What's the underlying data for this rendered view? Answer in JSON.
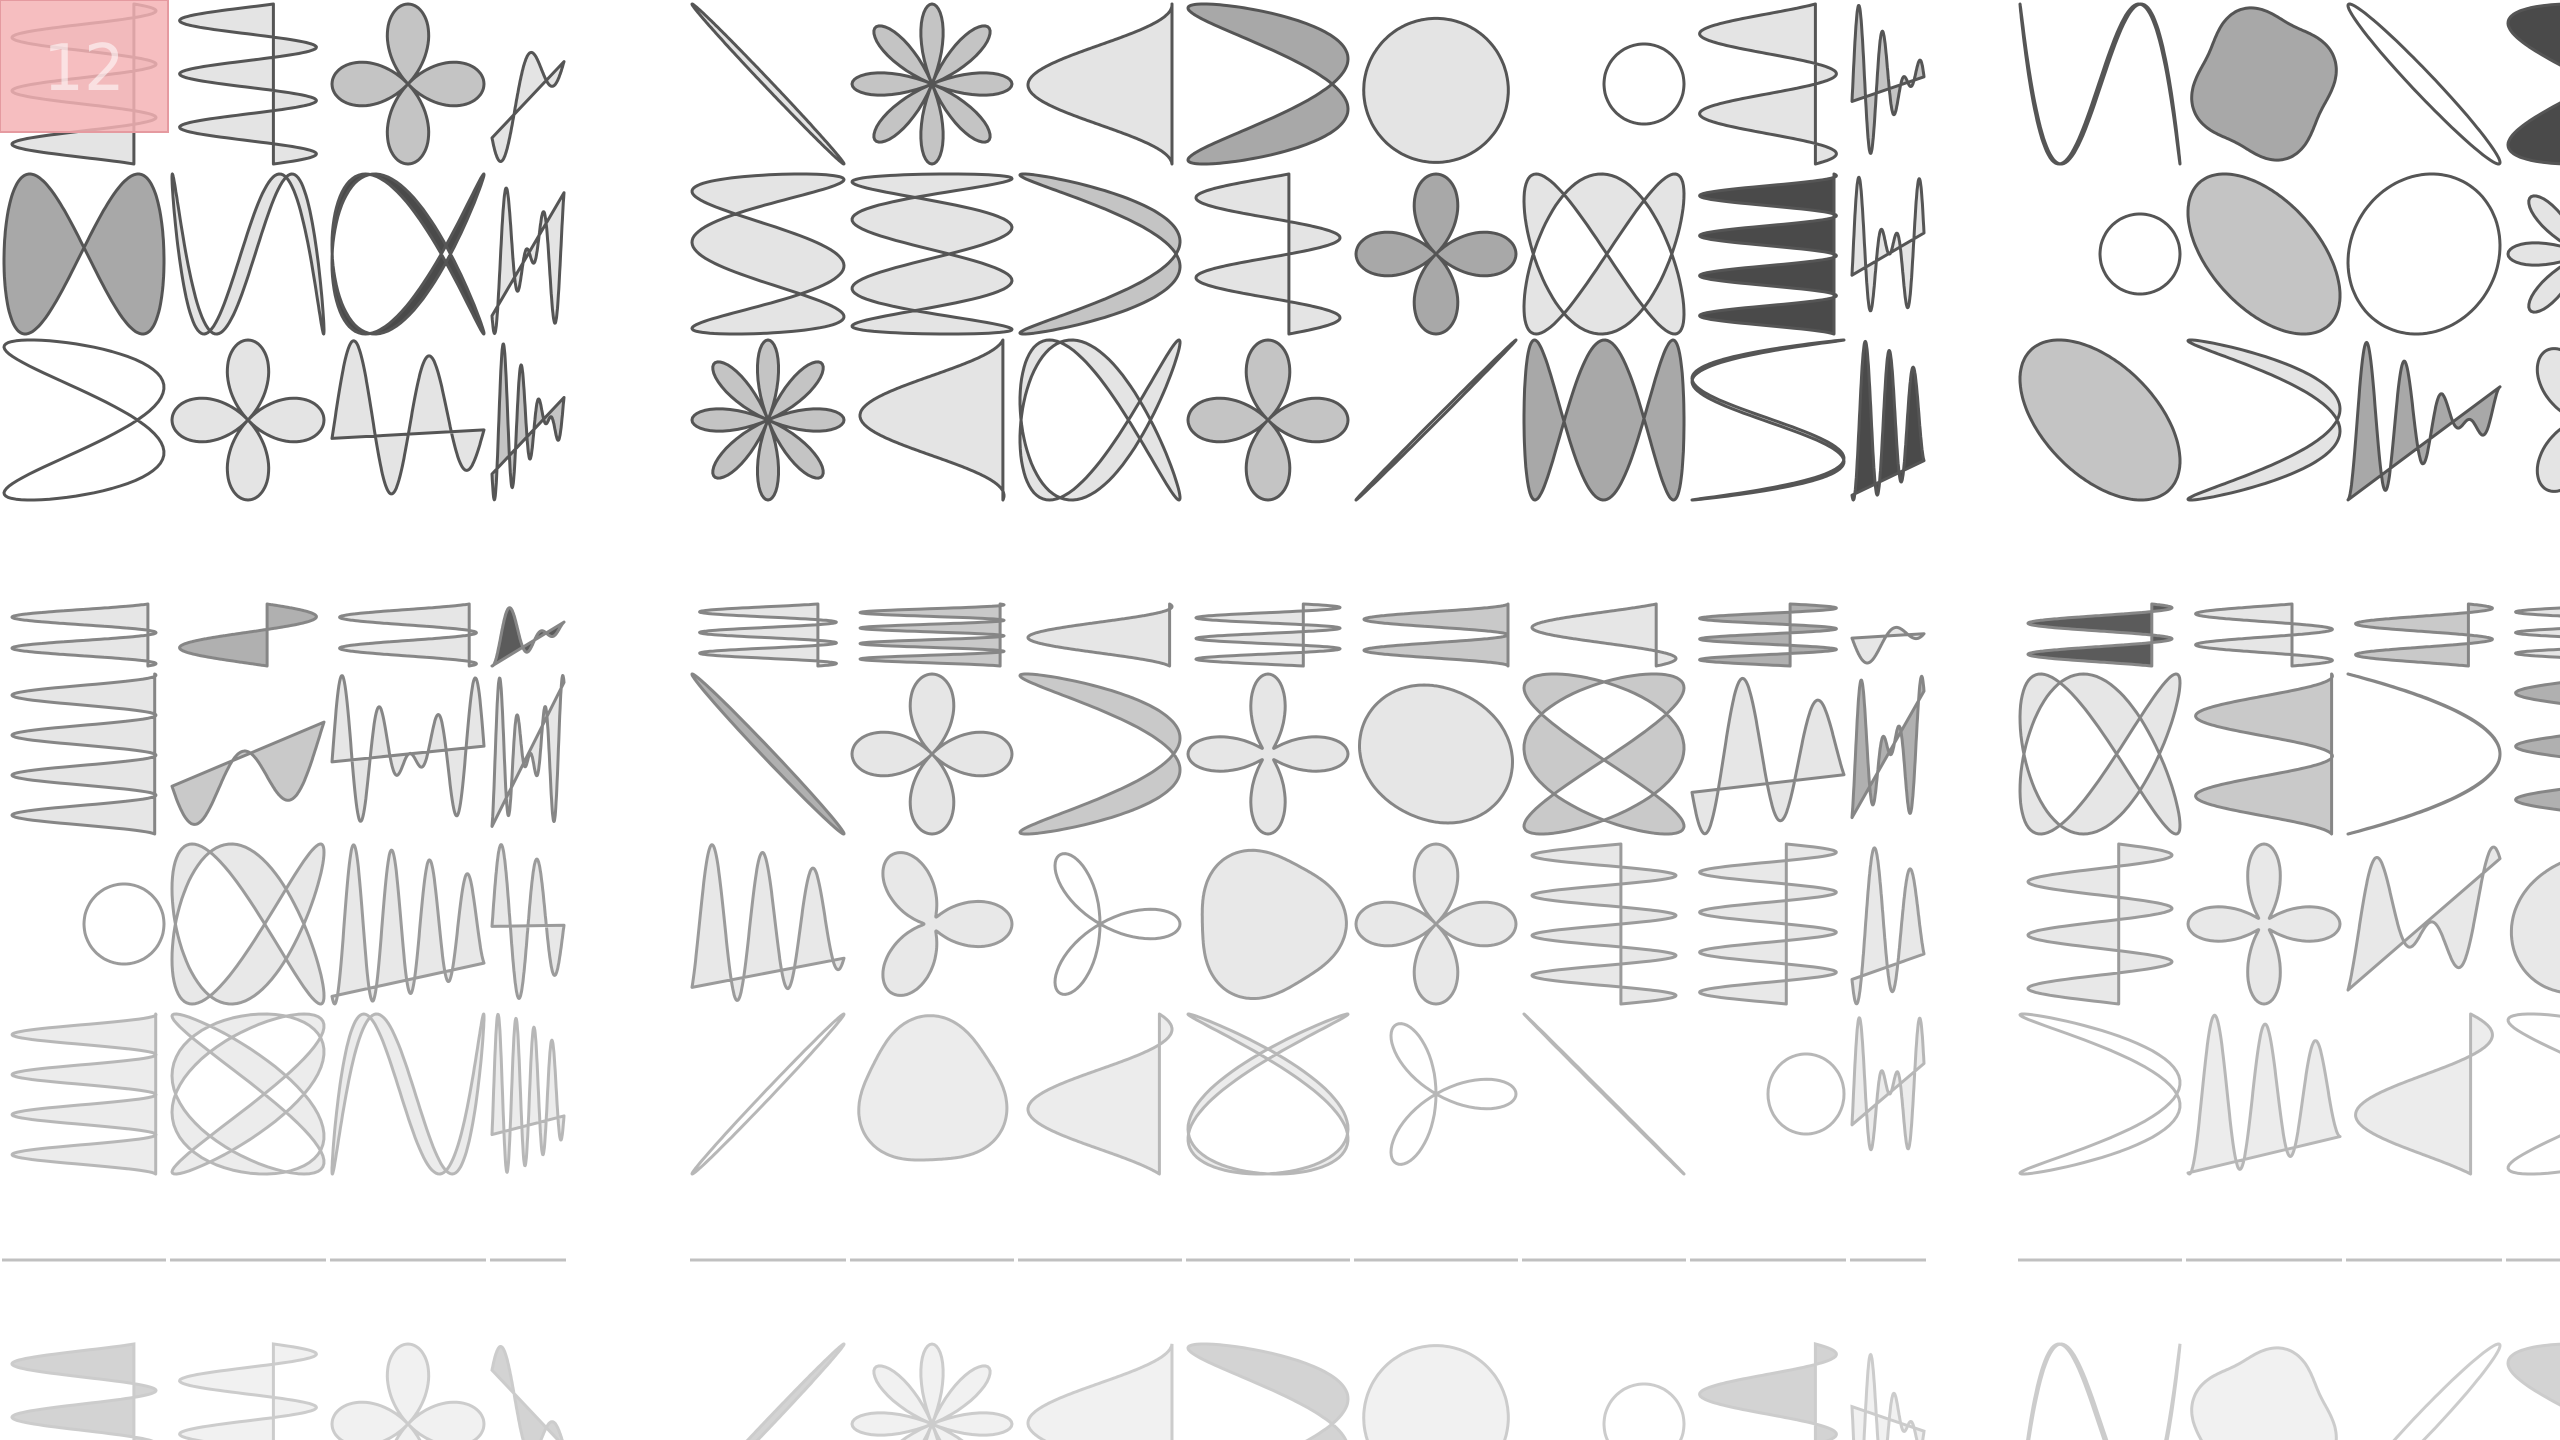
{
  "puzzle": {
    "badge_number": "12",
    "colors": {
      "highlight": "#f4b3b5",
      "light_fill": "#e4e4e4",
      "mid_fill": "#c4c4c4",
      "medium_dark_fill": "#a8a8a8",
      "dark_fill": "#4a4a4a",
      "outline": "#555555",
      "faded_outline": "#9a9a9a"
    },
    "groups": [
      "left",
      "middle",
      "right"
    ],
    "rows": [
      "row-1",
      "row-2",
      "row-3",
      "row-4",
      "row-5",
      "row-6",
      "row-7",
      "ground",
      "reflection"
    ],
    "row_styles": [
      {
        "opacity": 1.0,
        "stroke": "#555555"
      },
      {
        "opacity": 1.0,
        "stroke": "#555555"
      },
      {
        "opacity": 1.0,
        "stroke": "#555555"
      },
      {
        "opacity": 0.9,
        "stroke": "#7a7a7a"
      },
      {
        "opacity": 0.9,
        "stroke": "#7a7a7a"
      },
      {
        "opacity": 0.85,
        "stroke": "#8a8a8a"
      },
      {
        "opacity": 0.7,
        "stroke": "#9a9a9a"
      },
      {
        "opacity": 0.55,
        "stroke": "#b8b8b8"
      }
    ]
  }
}
